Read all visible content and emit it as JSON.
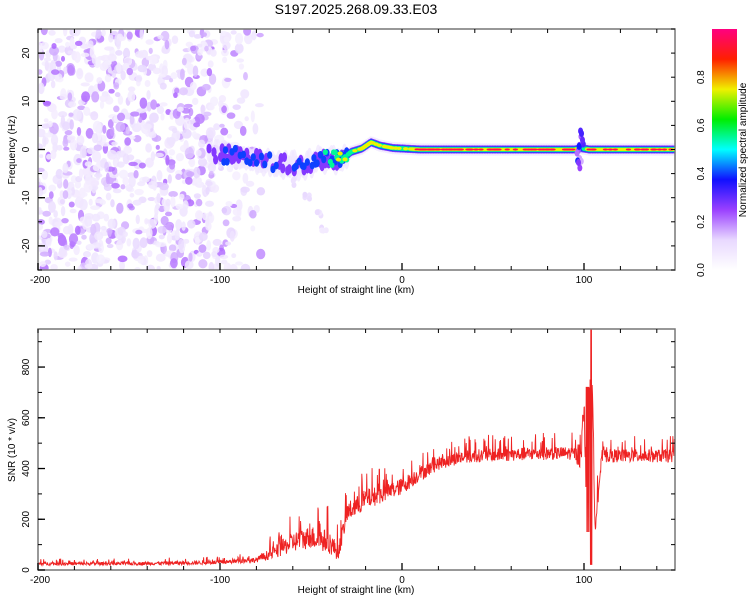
{
  "figure_title": "S197.2025.268.09.33.E03",
  "chart_data": [
    {
      "type": "heatmap",
      "name": "spectrogram",
      "title": "S197.2025.268.09.33.E03",
      "xlabel": "Height of straight line (km)",
      "ylabel": "Frequency (Hz)",
      "xlim": [
        -200,
        150
      ],
      "ylim": [
        -25,
        25
      ],
      "x_ticks": [
        -200,
        -100,
        0,
        100
      ],
      "x_tick_labels": [
        "-200",
        "-100",
        "0",
        "100"
      ],
      "y_ticks": [
        -20,
        -10,
        0,
        10,
        20
      ],
      "y_tick_labels": [
        "-20",
        "-10",
        "0",
        "10",
        "20"
      ],
      "colormap": "rainbow (white-violet-blue-cyan-green-yellow-red-magenta)",
      "colorbar": {
        "label": "Normalized spectral amplitude",
        "range": [
          0,
          1
        ],
        "ticks": [
          0.0,
          0.2,
          0.4,
          0.6,
          0.8
        ],
        "tick_labels": [
          "0.0",
          "0.2",
          "0.4",
          "0.6",
          "0.8"
        ],
        "stops": [
          "#ffffff",
          "#e8d8ff",
          "#9a40ff",
          "#1010ff",
          "#00ffff",
          "#00ee00",
          "#f0f000",
          "#ff2000",
          "#ff0080"
        ]
      },
      "features": {
        "noise_region_x": [
          -200,
          -105
        ],
        "carrier_track": [
          {
            "x": -106,
            "f": -1.0,
            "amp": 0.25
          },
          {
            "x": -95,
            "f": -1.2,
            "amp": 0.35
          },
          {
            "x": -85,
            "f": -1.5,
            "amp": 0.4
          },
          {
            "x": -75,
            "f": -2.5,
            "amp": 0.35
          },
          {
            "x": -65,
            "f": -3.0,
            "amp": 0.3
          },
          {
            "x": -55,
            "f": -3.5,
            "amp": 0.35
          },
          {
            "x": -45,
            "f": -2.0,
            "amp": 0.4
          },
          {
            "x": -38,
            "f": -2.0,
            "amp": 0.55
          },
          {
            "x": -33,
            "f": -2.2,
            "amp": 0.9
          },
          {
            "x": -28,
            "f": -0.5,
            "amp": 0.55
          },
          {
            "x": -22,
            "f": 0.2,
            "amp": 0.75
          },
          {
            "x": -17,
            "f": 1.5,
            "amp": 0.85
          },
          {
            "x": -12,
            "f": 0.8,
            "amp": 0.7
          },
          {
            "x": -5,
            "f": 0.3,
            "amp": 0.8
          },
          {
            "x": 0,
            "f": 0.2,
            "amp": 0.6
          },
          {
            "x": 10,
            "f": 0.0,
            "amp": 0.95
          },
          {
            "x": 40,
            "f": 0.0,
            "amp": 0.95
          },
          {
            "x": 60,
            "f": 0.0,
            "amp": 0.8
          },
          {
            "x": 95,
            "f": 0.0,
            "amp": 0.9
          },
          {
            "x": 98,
            "f": 0.3,
            "amp": 0.35
          },
          {
            "x": 103,
            "f": 0.0,
            "amp": 0.85
          },
          {
            "x": 130,
            "f": 0.0,
            "amp": 0.85
          },
          {
            "x": 150,
            "f": 0.0,
            "amp": 0.85
          }
        ],
        "faint_tail": [
          {
            "x": -60,
            "f": -7
          },
          {
            "x": -52,
            "f": -10
          },
          {
            "x": -46,
            "f": -13
          },
          {
            "x": -43,
            "f": -17
          }
        ]
      }
    },
    {
      "type": "line",
      "name": "snr",
      "xlabel": "Height of straight line (km)",
      "ylabel": "SNR (10 * v/v)",
      "xlim": [
        -200,
        150
      ],
      "ylim": [
        0,
        950
      ],
      "x_ticks": [
        -200,
        -100,
        0,
        100
      ],
      "x_tick_labels": [
        "-200",
        "-100",
        "0",
        "100"
      ],
      "y_ticks": [
        0,
        200,
        400,
        600,
        800
      ],
      "y_tick_labels": [
        "0",
        "200",
        "400",
        "600",
        "800"
      ],
      "color": "#ee2222",
      "envelope": {
        "x": [
          -200,
          -150,
          -100,
          -80,
          -70,
          -60,
          -50,
          -45,
          -40,
          -35,
          -30,
          -25,
          -20,
          -10,
          0,
          10,
          20,
          30,
          40,
          60,
          80,
          95,
          98,
          100,
          102,
          104,
          106,
          110,
          130,
          150
        ],
        "mean": [
          25,
          25,
          30,
          40,
          70,
          110,
          130,
          120,
          110,
          70,
          230,
          250,
          280,
          300,
          330,
          380,
          420,
          440,
          450,
          455,
          460,
          460,
          430,
          600,
          150,
          850,
          200,
          450,
          450,
          450
        ],
        "noise": [
          10,
          10,
          12,
          15,
          40,
          60,
          70,
          70,
          70,
          50,
          60,
          60,
          60,
          55,
          50,
          45,
          40,
          40,
          40,
          40,
          40,
          40,
          60,
          120,
          100,
          200,
          100,
          40,
          40,
          40
        ]
      }
    }
  ]
}
